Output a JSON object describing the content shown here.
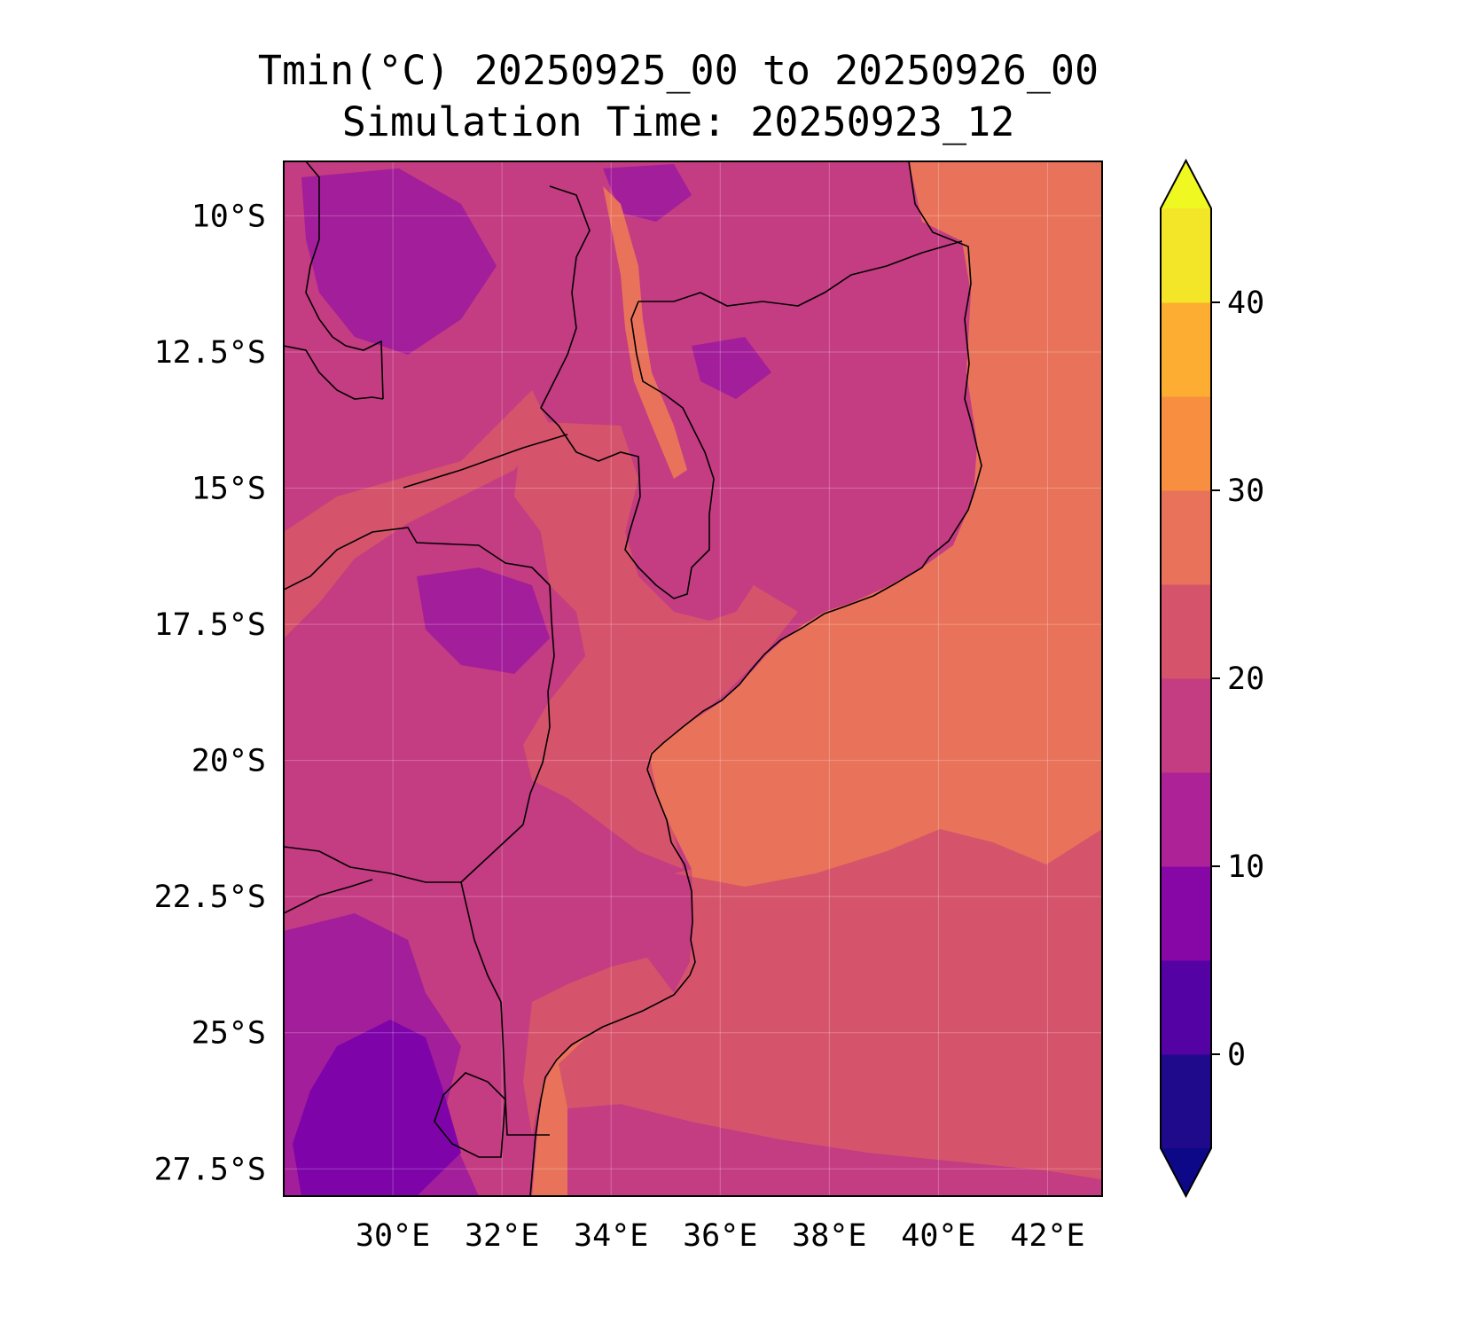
{
  "title": {
    "line1": "Tmin(°C) 20250925_00 to 20250926_00",
    "line2": "Simulation Time: 20250923_12"
  },
  "map": {
    "extent": {
      "lon": [
        28.0,
        43.0
      ],
      "lat": [
        -28.0,
        -9.0
      ]
    },
    "lon_ticks": [
      30,
      32,
      34,
      36,
      38,
      40,
      42
    ],
    "lat_ticks": [
      -10,
      -12.5,
      -15,
      -17.5,
      -20,
      -22.5,
      -25,
      -27.5
    ],
    "lon_tick_labels": [
      "30°E",
      "32°E",
      "34°E",
      "36°E",
      "38°E",
      "40°E",
      "42°E"
    ],
    "lat_tick_labels": [
      "10°S",
      "12.5°S",
      "15°S",
      "17.5°S",
      "20°S",
      "22.5°S",
      "25°S",
      "27.5°S"
    ],
    "grid": true,
    "colormap": "plasma",
    "colors": {
      "ocean": "#e8735a",
      "land": "#c43c82",
      "warm_land": "#d5546c",
      "cool_land": "#a21e9a",
      "cold_land": "#7e03a8",
      "borders": "#000000"
    }
  },
  "colorbar": {
    "bounds": [
      -5,
      0,
      5,
      10,
      15,
      20,
      25,
      30,
      35,
      40,
      45
    ],
    "colors": [
      "#1f0a8c",
      "#5502a4",
      "#8606a6",
      "#ad2296",
      "#c43c82",
      "#d5546c",
      "#e8735a",
      "#f78e40",
      "#fdae32",
      "#f3e528"
    ],
    "extend_low_color": "#0d0887",
    "extend_high_color": "#eff821",
    "ticks": [
      0,
      10,
      20,
      30,
      40
    ],
    "tick_labels": [
      "0",
      "10",
      "20",
      "30",
      "40"
    ]
  }
}
